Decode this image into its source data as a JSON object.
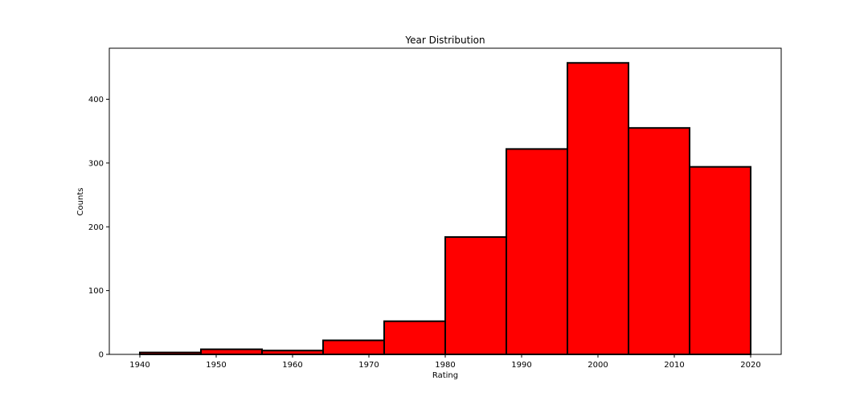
{
  "chart_data": {
    "type": "bar",
    "title": "Year Distribution",
    "xlabel": "Rating",
    "ylabel": "Counts",
    "bin_edges": [
      1940,
      1948,
      1956,
      1964,
      1972,
      1980,
      1988,
      1996,
      2004,
      2012,
      2020
    ],
    "values": [
      3,
      8,
      6,
      22,
      52,
      184,
      322,
      457,
      355,
      294
    ],
    "xlim": [
      1936,
      2024
    ],
    "ylim": [
      0,
      480
    ],
    "xticks": [
      1940,
      1950,
      1960,
      1970,
      1980,
      1990,
      2000,
      2010,
      2020
    ],
    "yticks": [
      0,
      100,
      200,
      300,
      400
    ],
    "bar_color": "#ff0000",
    "edge_color": "#000000",
    "grid": false
  }
}
